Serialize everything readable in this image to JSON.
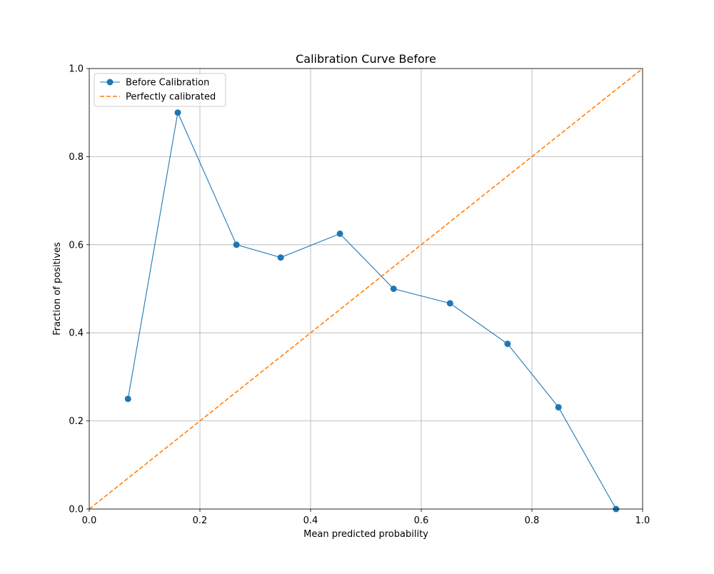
{
  "chart_data": {
    "type": "line",
    "title": "Calibration Curve Before",
    "xlabel": "Mean predicted probability",
    "ylabel": "Fraction of positives",
    "xlim": [
      0.0,
      1.0
    ],
    "ylim": [
      0.0,
      1.0
    ],
    "xticks": [
      "0.0",
      "0.2",
      "0.4",
      "0.6",
      "0.8",
      "1.0"
    ],
    "yticks": [
      "0.0",
      "0.2",
      "0.4",
      "0.6",
      "0.8",
      "1.0"
    ],
    "grid": true,
    "legend_position": "top-left",
    "series": [
      {
        "name": "Before Calibration",
        "color": "#1f77b4",
        "style": "solid-line-with-circle-markers",
        "x": [
          0.07,
          0.16,
          0.266,
          0.346,
          0.453,
          0.55,
          0.652,
          0.756,
          0.848,
          0.952
        ],
        "y": [
          0.25,
          0.9,
          0.6,
          0.571,
          0.625,
          0.5,
          0.467,
          0.375,
          0.231,
          0.0
        ]
      },
      {
        "name": "Perfectly calibrated",
        "color": "#ff7f0e",
        "style": "dashed-line",
        "x": [
          0.0,
          1.0
        ],
        "y": [
          0.0,
          1.0
        ]
      }
    ]
  }
}
